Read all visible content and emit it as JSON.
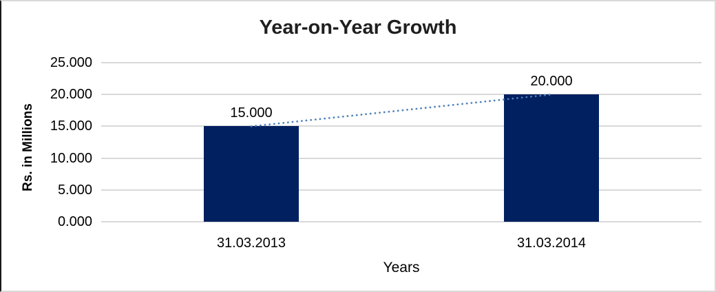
{
  "chart_data": {
    "type": "bar",
    "title": "Year-on-Year Growth",
    "xlabel": "Years",
    "ylabel": "Rs. in Millions",
    "categories": [
      "31.03.2013",
      "31.03.2014"
    ],
    "values": [
      15,
      20
    ],
    "data_labels": [
      "15.000",
      "20.000"
    ],
    "yticks": [
      "25.000",
      "20.000",
      "15.000",
      "10.000",
      "5.000",
      "0.000"
    ],
    "ylim": [
      0,
      25
    ],
    "grid": true,
    "legend": "none",
    "bar_color": "#002060",
    "trendline": {
      "style": "dotted",
      "color": "#4f81bd",
      "from_value": 15,
      "to_value": 20
    },
    "gridline_color": "#d9d9d9"
  }
}
